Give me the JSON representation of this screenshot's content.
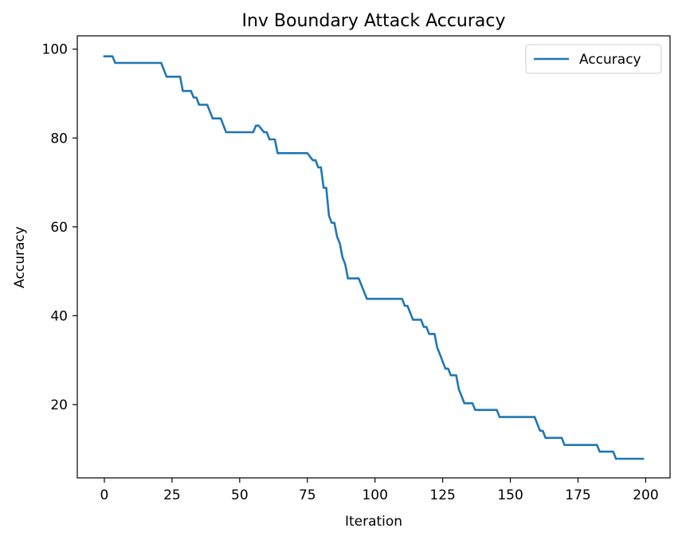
{
  "chart_data": {
    "type": "line",
    "title": "Inv Boundary Attack Accuracy",
    "xlabel": "Iteration",
    "ylabel": "Accuracy",
    "xlim": [
      -10,
      209
    ],
    "ylim": [
      3.5,
      103.0
    ],
    "xticks": [
      0,
      25,
      50,
      75,
      100,
      125,
      150,
      175,
      200
    ],
    "yticks": [
      20,
      40,
      60,
      80,
      100
    ],
    "grid": false,
    "legend": {
      "position": "top-right",
      "entries": [
        "Accuracy"
      ]
    },
    "colors": {
      "series": "#1f77b4",
      "axes": "#000000",
      "background": "#ffffff"
    },
    "series": [
      {
        "name": "Accuracy",
        "points": [
          [
            0,
            98.4
          ],
          [
            3,
            98.4
          ],
          [
            4,
            96.9
          ],
          [
            21,
            96.9
          ],
          [
            23,
            93.8
          ],
          [
            28,
            93.8
          ],
          [
            29,
            90.6
          ],
          [
            32,
            90.6
          ],
          [
            33,
            89.1
          ],
          [
            34,
            89.1
          ],
          [
            35,
            87.5
          ],
          [
            38,
            87.5
          ],
          [
            40,
            84.4
          ],
          [
            43,
            84.4
          ],
          [
            45,
            81.3
          ],
          [
            55,
            81.3
          ],
          [
            56,
            82.8
          ],
          [
            57,
            82.8
          ],
          [
            59,
            81.3
          ],
          [
            60,
            81.3
          ],
          [
            61,
            79.7
          ],
          [
            63,
            79.7
          ],
          [
            64,
            76.6
          ],
          [
            75,
            76.6
          ],
          [
            77,
            75.0
          ],
          [
            78,
            75.0
          ],
          [
            79,
            73.4
          ],
          [
            80,
            73.4
          ],
          [
            81,
            68.8
          ],
          [
            82,
            68.8
          ],
          [
            83,
            62.5
          ],
          [
            84,
            60.9
          ],
          [
            85,
            60.9
          ],
          [
            86,
            57.8
          ],
          [
            87,
            56.3
          ],
          [
            88,
            53.1
          ],
          [
            89,
            51.6
          ],
          [
            90,
            48.4
          ],
          [
            94,
            48.4
          ],
          [
            96,
            45.3
          ],
          [
            97,
            43.8
          ],
          [
            110,
            43.8
          ],
          [
            111,
            42.2
          ],
          [
            112,
            42.2
          ],
          [
            114,
            39.1
          ],
          [
            117,
            39.1
          ],
          [
            118,
            37.5
          ],
          [
            119,
            37.5
          ],
          [
            120,
            35.9
          ],
          [
            122,
            35.9
          ],
          [
            123,
            32.8
          ],
          [
            124,
            31.3
          ],
          [
            125,
            29.7
          ],
          [
            126,
            28.1
          ],
          [
            127,
            28.1
          ],
          [
            128,
            26.6
          ],
          [
            130,
            26.6
          ],
          [
            131,
            23.4
          ],
          [
            132,
            21.9
          ],
          [
            133,
            20.3
          ],
          [
            136,
            20.3
          ],
          [
            137,
            18.8
          ],
          [
            145,
            18.8
          ],
          [
            146,
            17.2
          ],
          [
            159,
            17.2
          ],
          [
            160,
            15.6
          ],
          [
            161,
            14.1
          ],
          [
            162,
            14.1
          ],
          [
            163,
            12.5
          ],
          [
            169,
            12.5
          ],
          [
            170,
            10.9
          ],
          [
            182,
            10.9
          ],
          [
            183,
            9.4
          ],
          [
            188,
            9.4
          ],
          [
            189,
            7.8
          ],
          [
            199,
            7.8
          ]
        ]
      }
    ]
  }
}
